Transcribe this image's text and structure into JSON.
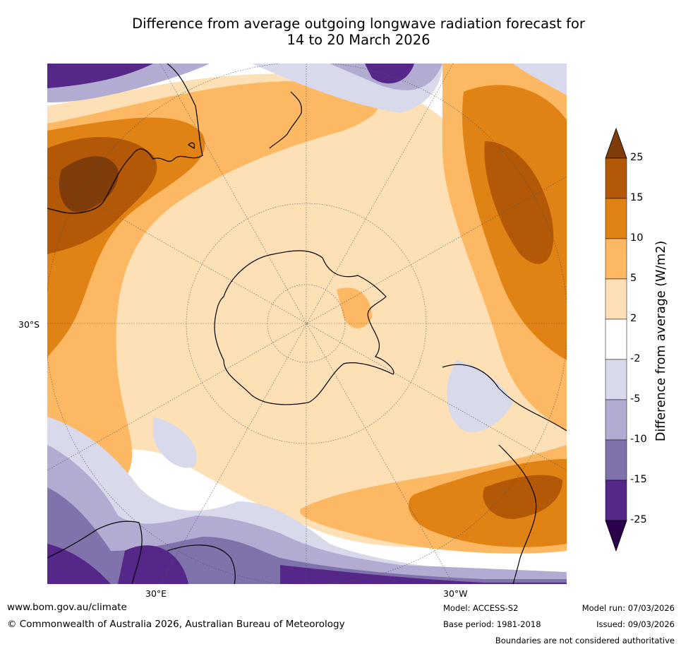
{
  "title": {
    "line1": "Difference from average outgoing longwave radiation forecast for",
    "line2": "14 to 20 March 2026"
  },
  "map": {
    "projection": "south polar stereographic",
    "lat_labels": [
      "30°S"
    ],
    "lon_labels": [
      "30°E",
      "30°W"
    ]
  },
  "legend": {
    "label": "Difference from average (W/m2)",
    "ticks": [
      "25",
      "15",
      "10",
      "5",
      "2",
      "-2",
      "-5",
      "-10",
      "-15",
      "-25"
    ],
    "colors": {
      "above_25": "#7f3b08",
      "15_25": "#b35806",
      "10_15": "#e08214",
      "5_10": "#fdb863",
      "2_5": "#fee0b6",
      "neutral": "#ffffff",
      "m2_m5": "#d8daeb",
      "m5_m10": "#b2abd2",
      "m10_m15": "#8073ac",
      "m15_m25": "#542788",
      "below_m25": "#2d004b"
    }
  },
  "footer": {
    "url": "www.bom.gov.au/climate",
    "copyright": "© Commonwealth of Australia 2026, Australian Bureau of Meteorology",
    "model": "Model: ACCESS-S2",
    "base_period": "Base period: 1981-2018",
    "model_run": "Model run: 07/03/2026",
    "issued": "Issued: 09/03/2026",
    "disclaimer": "Boundaries are not considered authoritative"
  }
}
